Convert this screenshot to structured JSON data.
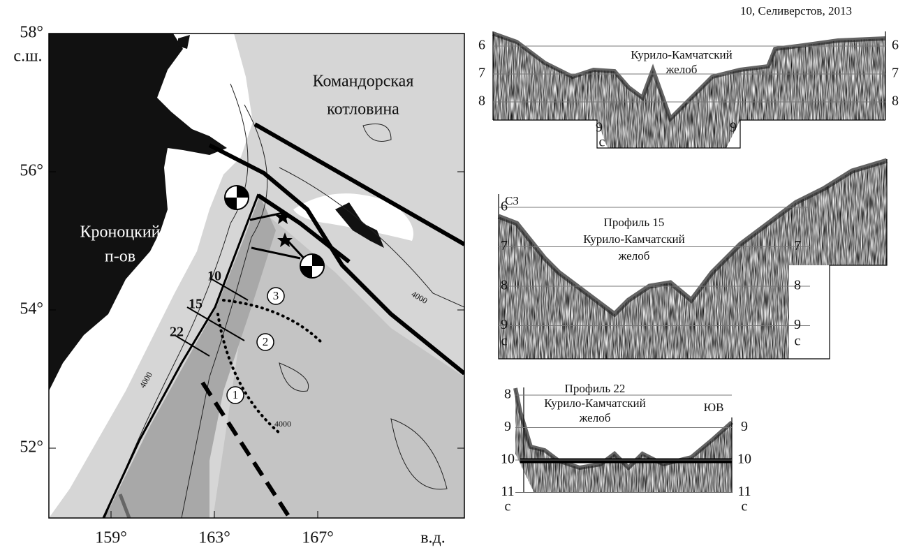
{
  "map": {
    "lat_ticks": [
      {
        "value": 58,
        "label": "58°"
      },
      {
        "value": 56,
        "label": "56°"
      },
      {
        "value": 54,
        "label": "54°"
      },
      {
        "value": 52,
        "label": "52°"
      }
    ],
    "lat_unit": "с.ш.",
    "lon_ticks": [
      {
        "value": 159,
        "label": "159°"
      },
      {
        "value": 163,
        "label": "163°"
      },
      {
        "value": 167,
        "label": "167°"
      }
    ],
    "lon_unit": "в.д.",
    "basin": [
      "Командорская",
      "котловина"
    ],
    "peninsula": [
      "Кроноцкий",
      "п-ов"
    ],
    "profile_numbers": [
      "10",
      "15",
      "22"
    ],
    "zones": [
      "1",
      "2",
      "3"
    ],
    "contours": [
      "4000",
      "4000",
      "4000"
    ]
  },
  "profiles": [
    {
      "title": "10, Селиверстов, 2013",
      "trench": [
        "Курило-Камчатский",
        "желоб"
      ],
      "left_ticks": [
        6,
        7,
        8
      ],
      "right_ticks": [
        6,
        7,
        8
      ],
      "bottom_ticks": [
        9,
        9
      ],
      "unit": "с"
    },
    {
      "direction": "СЗ",
      "title": "Профиль 15",
      "trench": [
        "Курило-Камчатский",
        "желоб"
      ],
      "left_ticks": [
        6,
        7,
        8,
        9
      ],
      "right_ticks": [
        7,
        8,
        9
      ],
      "unit": "с"
    },
    {
      "direction": "ЮВ",
      "title": "Профиль 22",
      "trench": [
        "Курило-Камчатский",
        "желоб"
      ],
      "left_ticks": [
        8,
        9,
        10,
        11
      ],
      "right_ticks": [
        9,
        10,
        11
      ],
      "unit": "с"
    }
  ]
}
